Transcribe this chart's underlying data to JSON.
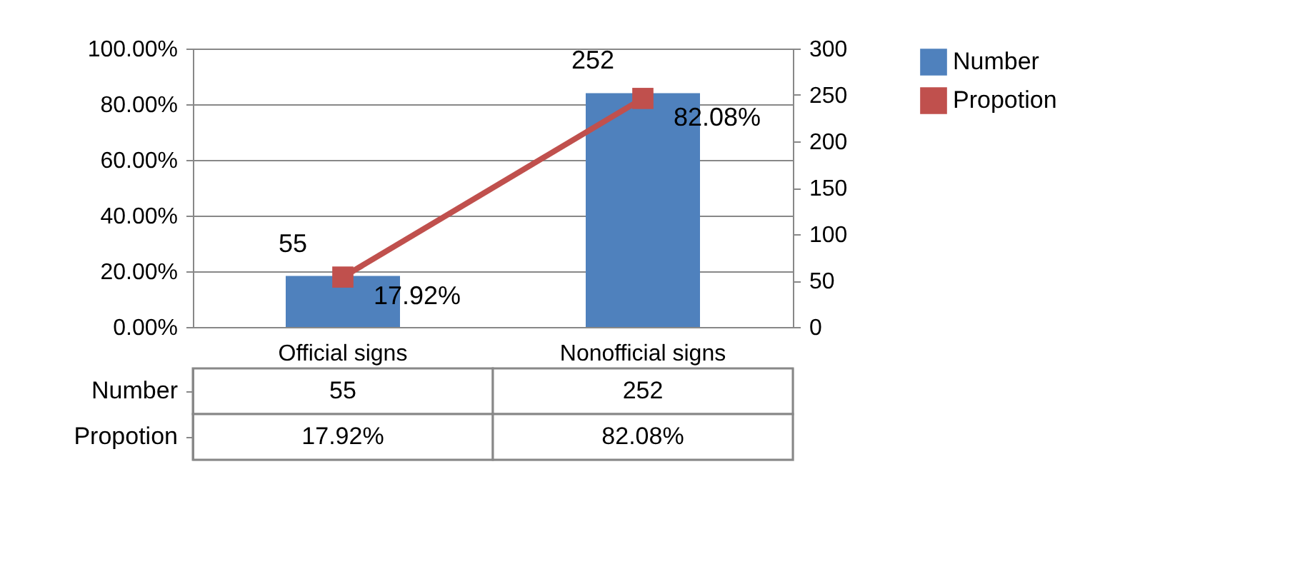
{
  "chart_data": {
    "type": "bar",
    "categories": [
      "Official signs",
      "Nonofficial signs"
    ],
    "series": [
      {
        "name": "Number",
        "axis": "y2",
        "color": "#4f81bd",
        "values": [
          55,
          252
        ],
        "value_labels": [
          "55",
          "252"
        ]
      },
      {
        "name": "Propotion",
        "type": "line",
        "axis": "y",
        "color": "#c0504d",
        "marker": "square",
        "values": [
          17.92,
          82.08
        ],
        "value_labels": [
          "17.92%",
          "82.08%"
        ]
      }
    ],
    "ylim": [
      0,
      100
    ],
    "yticks": [
      {
        "value": 0,
        "label": "0.00%"
      },
      {
        "value": 20,
        "label": "20.00%"
      },
      {
        "value": 40,
        "label": "40.00%"
      },
      {
        "value": 60,
        "label": "60.00%"
      },
      {
        "value": 80,
        "label": "80.00%"
      },
      {
        "value": 100,
        "label": "100.00%"
      }
    ],
    "y2lim": [
      0,
      300
    ],
    "y2ticks": [
      0,
      50,
      100,
      150,
      200,
      250,
      300
    ],
    "grid": "y",
    "legend": "right"
  }
}
